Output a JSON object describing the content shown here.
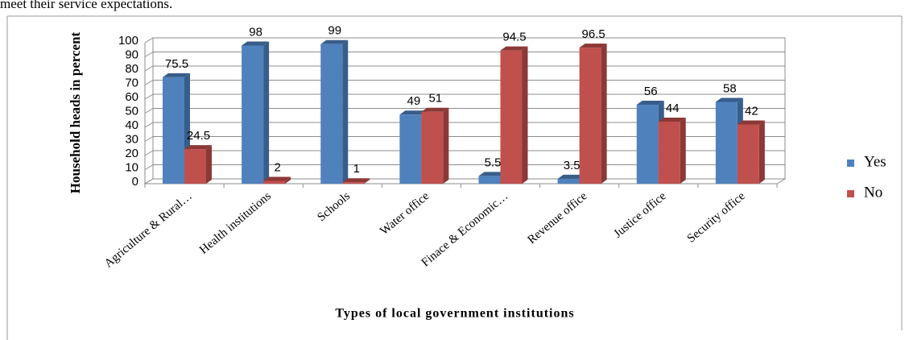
{
  "header_text": "meet their service expectations.",
  "chart_data": {
    "type": "bar3d",
    "y_label": "Household heads in percent",
    "x_label": "Types of local government institutions",
    "categories": [
      "Agriculture & Rural…",
      "Health institutions",
      "Schools",
      "Water office",
      "Finace & Economic…",
      "Revenue office",
      "Justice office",
      "Security office"
    ],
    "series": [
      {
        "name": "Yes",
        "color": "#4f81bd",
        "side": "#385d8a",
        "values": [
          75.5,
          98,
          99,
          49,
          5.5,
          3.5,
          56,
          58
        ]
      },
      {
        "name": "No",
        "color": "#c0504d",
        "side": "#8c3836",
        "values": [
          24.5,
          2,
          1,
          51,
          94.5,
          96.5,
          44,
          42
        ]
      }
    ],
    "ylim": [
      0,
      100
    ],
    "yticks": [
      0,
      10,
      20,
      30,
      40,
      50,
      60,
      70,
      80,
      90,
      100
    ],
    "grid": true,
    "legend": "right"
  }
}
